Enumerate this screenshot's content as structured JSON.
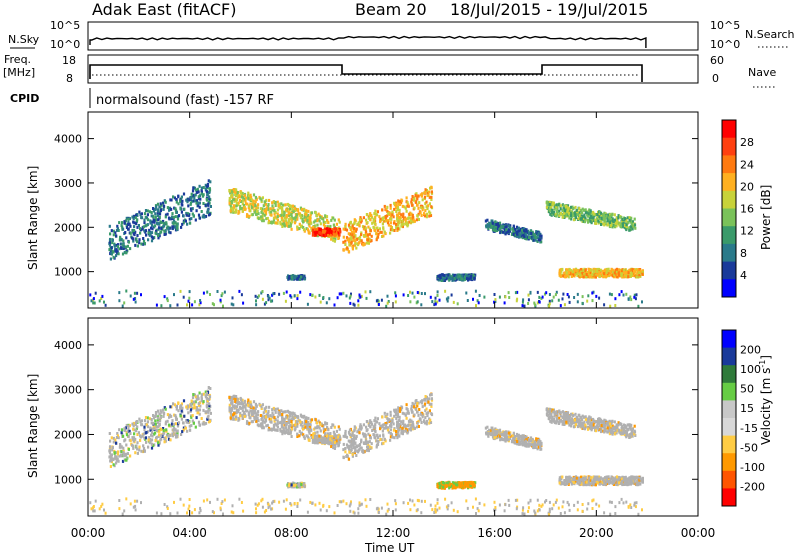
{
  "header": {
    "radar": "Adak East (fitACF)",
    "beam": "Beam 20",
    "date_range": "18/Jul/2015 - 19/Jul/2015"
  },
  "nsky_panel": {
    "left_label": "N.Sky",
    "left_ticks": [
      "10^5",
      "10^0"
    ],
    "right_label": "N.Search",
    "right_ticks": [
      "10^5",
      "10^0"
    ]
  },
  "freq_panel": {
    "left_label_line1": "Freq.",
    "left_label_line2": "[MHz]",
    "left_ticks": [
      "18",
      "8"
    ],
    "right_label": "Nave",
    "right_ticks": [
      "60",
      "0"
    ]
  },
  "cpid": {
    "label": "CPID",
    "program": "normalsound (fast) -157 RF"
  },
  "colors": {
    "power_scale": [
      "#0000ff",
      "#1a3a9a",
      "#2a7a8a",
      "#3a9a6a",
      "#7ac25a",
      "#c8d23a",
      "#ffb020",
      "#ff7a10",
      "#ff4010",
      "#ff0000"
    ],
    "velocity_scale": [
      "#0000ff",
      "#1a3a9a",
      "#2f7a3a",
      "#66cc44",
      "#c8c8c8",
      "#d8d8d8",
      "#ffcc44",
      "#ff9900",
      "#ff5500",
      "#ff0000"
    ],
    "ground_scatter": "#b0b0b0"
  },
  "chart_data": [
    {
      "type": "heatmap",
      "name": "power",
      "ylabel": "Slant Range [km]",
      "yticks": [
        "1000",
        "2000",
        "3000",
        "4000"
      ],
      "ylim": [
        180,
        4600
      ],
      "xlim": [
        0,
        24
      ],
      "colorbar_label": "Power [dB]",
      "colorbar_ticks": [
        "4",
        "8",
        "12",
        "16",
        "20",
        "24",
        "28"
      ],
      "scatter_regions": [
        {
          "t": [
            0.8,
            4.8
          ],
          "r": [
            1150,
            2900
          ],
          "shape": "arc_up",
          "level": 2
        },
        {
          "t": [
            5.5,
            9.9
          ],
          "r": [
            1700,
            2900
          ],
          "shape": "band_down",
          "level": 5
        },
        {
          "t": [
            8.8,
            9.9
          ],
          "r": [
            1750,
            2100
          ],
          "shape": "blob",
          "level": 8
        },
        {
          "t": [
            10.0,
            13.5
          ],
          "r": [
            1300,
            2800
          ],
          "shape": "arc_up",
          "level": 6
        },
        {
          "t": [
            13.7,
            15.2
          ],
          "r": [
            750,
            1050
          ],
          "shape": "blob",
          "level": 2
        },
        {
          "t": [
            15.6,
            17.8
          ],
          "r": [
            1700,
            2200
          ],
          "shape": "band_down",
          "level": 2
        },
        {
          "t": [
            18.0,
            21.5
          ],
          "r": [
            1950,
            2600
          ],
          "shape": "band_down",
          "level": 4
        },
        {
          "t": [
            18.5,
            21.8
          ],
          "r": [
            800,
            1200
          ],
          "shape": "blob",
          "level": 6
        },
        {
          "t": [
            7.8,
            8.5
          ],
          "r": [
            800,
            1000
          ],
          "shape": "blob",
          "level": 2
        }
      ]
    },
    {
      "type": "heatmap",
      "name": "velocity",
      "ylabel": "Slant Range [km]",
      "yticks": [
        "1000",
        "2000",
        "3000",
        "4000"
      ],
      "ylim": [
        180,
        4600
      ],
      "xlim": [
        0,
        24
      ],
      "xlabel": "Time UT",
      "xticks": [
        "00:00",
        "04:00",
        "08:00",
        "12:00",
        "16:00",
        "20:00",
        "00:00"
      ],
      "colorbar_label": "Velocity [m s^-1]",
      "colorbar_ticks": [
        "200",
        "100",
        "50",
        "15",
        "-15",
        "-50",
        "-100",
        "-200"
      ]
    }
  ]
}
